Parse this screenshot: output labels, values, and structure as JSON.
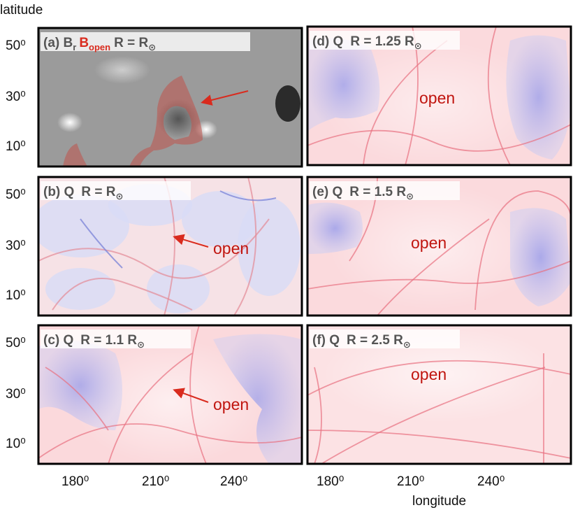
{
  "axes": {
    "y_label": "latitude",
    "x_label": "longitude",
    "y_ticks": [
      "50⁰",
      "30⁰",
      "10⁰"
    ],
    "x_ticks": [
      "180⁰",
      "210⁰",
      "240⁰"
    ]
  },
  "panels": [
    {
      "tag": "(a)",
      "quantity": "B",
      "quantity_sub": "r",
      "overlay": "B",
      "overlay_sub": "open",
      "radius": "R = R",
      "radius_sub": "⊙"
    },
    {
      "tag": "(b)",
      "quantity": "Q",
      "radius": "R = R",
      "radius_sub": "⊙",
      "annotation": "open"
    },
    {
      "tag": "(c)",
      "quantity": "Q",
      "radius": "R = 1.1 R",
      "radius_sub": "⊙",
      "annotation": "open"
    },
    {
      "tag": "(d)",
      "quantity": "Q",
      "radius": "R = 1.25 R",
      "radius_sub": "⊙",
      "annotation": "open"
    },
    {
      "tag": "(e)",
      "quantity": "Q",
      "radius": "R = 1.5 R",
      "radius_sub": "⊙",
      "annotation": "open"
    },
    {
      "tag": "(f)",
      "quantity": "Q",
      "radius": "R = 2.5 R",
      "radius_sub": "⊙",
      "annotation": "open"
    }
  ]
}
